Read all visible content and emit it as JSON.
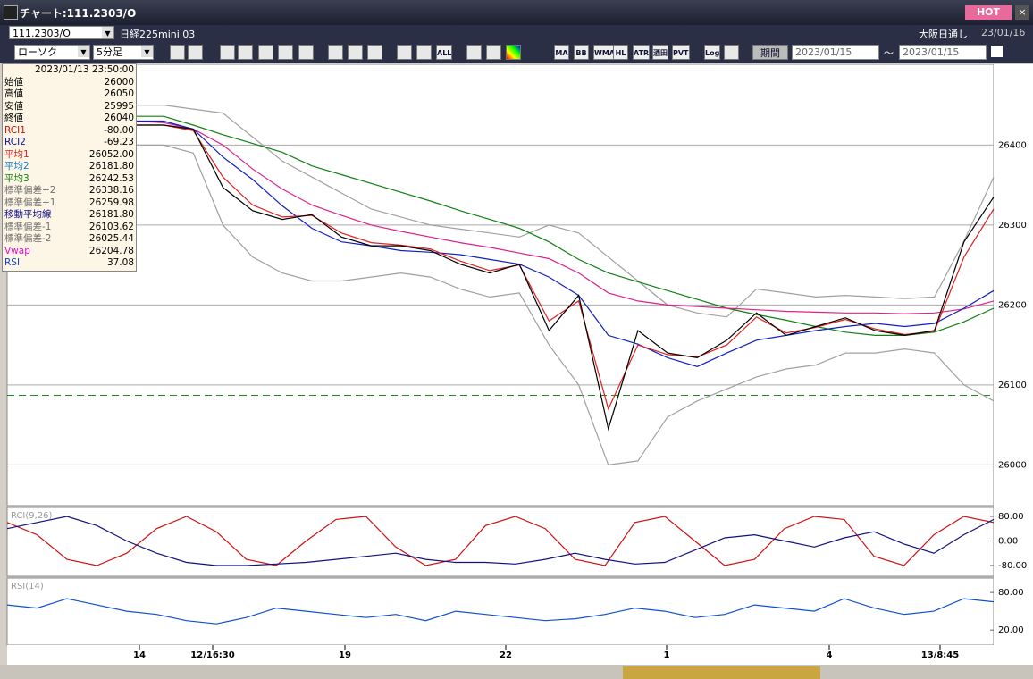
{
  "window": {
    "title": "チャート:111.2303/O",
    "hot": "HOT",
    "close": "×"
  },
  "toolbar": {
    "symbol": "111.2303/O",
    "name": "日経225mini 03",
    "market": "大阪日通し",
    "date": "23/01/16",
    "chart_type": "ローソク",
    "interval": "5分足",
    "text_buttons": [
      "ALL",
      "MA",
      "BB",
      "WMA",
      "HL",
      "ATR",
      "酒田",
      "PVT",
      "Log"
    ],
    "period_button": "期間",
    "date_from": "2023/01/15",
    "tilde": "～",
    "date_to": "2023/01/15"
  },
  "info_panel": {
    "datetime": "2023/01/13 23:50:00",
    "rows": [
      {
        "label": "始値",
        "value": "26000",
        "color": "#000000"
      },
      {
        "label": "高値",
        "value": "26050",
        "color": "#000000"
      },
      {
        "label": "安値",
        "value": "25995",
        "color": "#000000"
      },
      {
        "label": "終値",
        "value": "26040",
        "color": "#000000"
      },
      {
        "label": "RCI1",
        "value": "-80.00",
        "color": "#d01010"
      },
      {
        "label": "RCI2",
        "value": "-69.23",
        "color": "#101080"
      },
      {
        "label": "平均1",
        "value": "26052.00",
        "color": "#e02020"
      },
      {
        "label": "平均2",
        "value": "26181.80",
        "color": "#1080d0"
      },
      {
        "label": "平均3",
        "value": "26242.53",
        "color": "#108010"
      },
      {
        "label": "標準偏差+2",
        "value": "26338.16",
        "color": "#707070"
      },
      {
        "label": "標準偏差+1",
        "value": "26259.98",
        "color": "#707070"
      },
      {
        "label": "移動平均線",
        "value": "26181.80",
        "color": "#101090"
      },
      {
        "label": "標準偏差-1",
        "value": "26103.62",
        "color": "#707070"
      },
      {
        "label": "標準偏差-2",
        "value": "26025.44",
        "color": "#707070"
      },
      {
        "label": "Vwap",
        "value": "26204.78",
        "color": "#e010c0"
      },
      {
        "label": "RSI",
        "value": "37.08",
        "color": "#1040d0"
      }
    ]
  },
  "x_axis_labels": [
    "14",
    "12/16:30",
    "19",
    "22",
    "1",
    "4",
    "13/8:45"
  ],
  "chart_data": [
    {
      "type": "line",
      "ylim": [
        25949,
        26501
      ],
      "yticks": [
        26000,
        26100,
        26200,
        26300,
        26400
      ],
      "grid": true,
      "reference_line": {
        "value": 26087,
        "color": "#1a8a1a"
      },
      "series": [
        {
          "color": "#a0a0a0",
          "values": [
            26450,
            26450,
            26445,
            26440,
            26410,
            26380,
            26360,
            26340,
            26320,
            26310,
            26300,
            26295,
            26290,
            26285,
            26300,
            26290,
            26260,
            26230,
            26200,
            26190,
            26185,
            26220,
            26215,
            26210,
            26212,
            26210,
            26208,
            26210,
            26280,
            26360
          ]
        },
        {
          "color": "#a0a0a0",
          "values": [
            26400,
            26400,
            26390,
            26300,
            26260,
            26240,
            26230,
            26230,
            26235,
            26240,
            26235,
            26220,
            26210,
            26215,
            26150,
            26100,
            26000,
            26005,
            26060,
            26080,
            26095,
            26110,
            26120,
            26125,
            26140,
            26140,
            26145,
            26140,
            26100,
            26080
          ]
        },
        {
          "color": "#108010",
          "values": [
            26436,
            26436,
            26425,
            26413,
            26402,
            26391,
            26374,
            26363,
            26352,
            26341,
            26330,
            26318,
            26307,
            26296,
            26279,
            26257,
            26240,
            26229,
            26218,
            26207,
            26196,
            26188,
            26181,
            26173,
            26166,
            26162,
            26162,
            26166,
            26179,
            26196
          ]
        },
        {
          "color": "#e0208a",
          "values": [
            26430,
            26428,
            26420,
            26400,
            26370,
            26345,
            26325,
            26312,
            26300,
            26292,
            26285,
            26278,
            26272,
            26265,
            26258,
            26240,
            26215,
            26205,
            26200,
            26198,
            26196,
            26194,
            26192,
            26191,
            26190,
            26190,
            26189,
            26190,
            26195,
            26205
          ]
        },
        {
          "color": "#1020c0",
          "values": [
            26430,
            26430,
            26420,
            26385,
            26357,
            26324,
            26296,
            26279,
            26274,
            26268,
            26266,
            26263,
            26257,
            26251,
            26235,
            26212,
            26162,
            26151,
            26134,
            26123,
            26140,
            26156,
            26162,
            26168,
            26173,
            26177,
            26173,
            26177,
            26196,
            26218
          ]
        },
        {
          "color": "#e02020",
          "values": [
            26425,
            26425,
            26418,
            26360,
            26325,
            26310,
            26312,
            26290,
            26278,
            26275,
            26270,
            26255,
            26243,
            26250,
            26180,
            26205,
            26070,
            26150,
            26138,
            26135,
            26150,
            26185,
            26165,
            26172,
            26182,
            26170,
            26163,
            26167,
            26260,
            26320
          ]
        },
        {
          "color": "#000000",
          "values": [
            26425,
            26425,
            26420,
            26347,
            26318,
            26307,
            26313,
            26285,
            26274,
            26274,
            26268,
            26251,
            26240,
            26251,
            26168,
            26212,
            26045,
            26168,
            26140,
            26134,
            26156,
            26190,
            26162,
            26173,
            26184,
            26168,
            26162,
            26168,
            26279,
            26335
          ]
        }
      ]
    },
    {
      "type": "line",
      "title": "RCI(9,26)",
      "ylim": [
        -115,
        109
      ],
      "yticks": [
        {
          "value": 80,
          "label": "80.00"
        },
        {
          "value": 0,
          "label": "0.00"
        },
        {
          "value": -80,
          "label": "-80.00"
        }
      ],
      "series": [
        {
          "color": "#d01010",
          "values": [
            60,
            20,
            -60,
            -80,
            -40,
            40,
            80,
            30,
            -60,
            -80,
            0,
            70,
            80,
            -20,
            -80,
            -60,
            50,
            80,
            40,
            -60,
            -80,
            60,
            80,
            0,
            -80,
            -60,
            40,
            80,
            70,
            -50,
            -80,
            20,
            80,
            60
          ]
        },
        {
          "color": "#101080",
          "values": [
            40,
            60,
            80,
            50,
            0,
            -40,
            -70,
            -80,
            -80,
            -75,
            -70,
            -60,
            -50,
            -40,
            -60,
            -70,
            -70,
            -75,
            -60,
            -40,
            -60,
            -75,
            -70,
            -30,
            10,
            20,
            0,
            -20,
            10,
            30,
            -10,
            -40,
            20,
            70
          ]
        }
      ]
    },
    {
      "type": "line",
      "title": "RSI(14)",
      "ylim": [
        -4,
        103
      ],
      "yticks": [
        {
          "value": 80,
          "label": "80.00"
        },
        {
          "value": 20,
          "label": "20.00"
        }
      ],
      "series": [
        {
          "color": "#1050d0",
          "values": [
            60,
            55,
            70,
            60,
            50,
            45,
            35,
            30,
            40,
            55,
            50,
            45,
            40,
            45,
            35,
            50,
            45,
            40,
            35,
            38,
            45,
            55,
            50,
            40,
            45,
            60,
            55,
            50,
            70,
            55,
            45,
            50,
            70,
            65
          ]
        }
      ]
    }
  ]
}
